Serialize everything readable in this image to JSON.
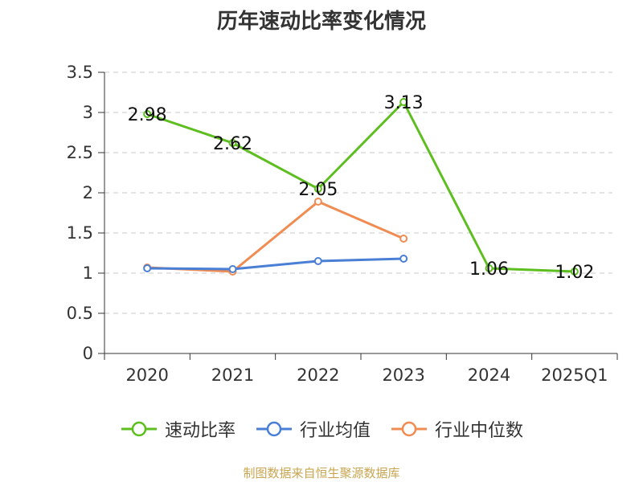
{
  "chart_data": {
    "type": "line",
    "title": "历年速动比率变化情况",
    "categories": [
      "2020",
      "2021",
      "2022",
      "2023",
      "2024",
      "2025Q1"
    ],
    "yticks": [
      "0",
      "0.5",
      "1",
      "1.5",
      "2",
      "2.5",
      "3",
      "3.5"
    ],
    "ylim": [
      0,
      3.5
    ],
    "grid": true,
    "legend_position": "bottom",
    "series": [
      {
        "name": "速动比率",
        "color": "#5dbe1f",
        "values": [
          2.98,
          2.62,
          2.05,
          3.13,
          1.06,
          1.02
        ],
        "labels": [
          "2.98",
          "2.62",
          "2.05",
          "3.13",
          "1.06",
          "1.02"
        ]
      },
      {
        "name": "行业均值",
        "color": "#4a7fd6",
        "values": [
          1.06,
          1.05,
          1.15,
          1.18,
          null,
          null
        ]
      },
      {
        "name": "行业中位数",
        "color": "#f08c52",
        "values": [
          1.07,
          1.02,
          1.89,
          1.43,
          null,
          null
        ]
      }
    ]
  },
  "source_note": "制图数据来自恒生聚源数据库"
}
